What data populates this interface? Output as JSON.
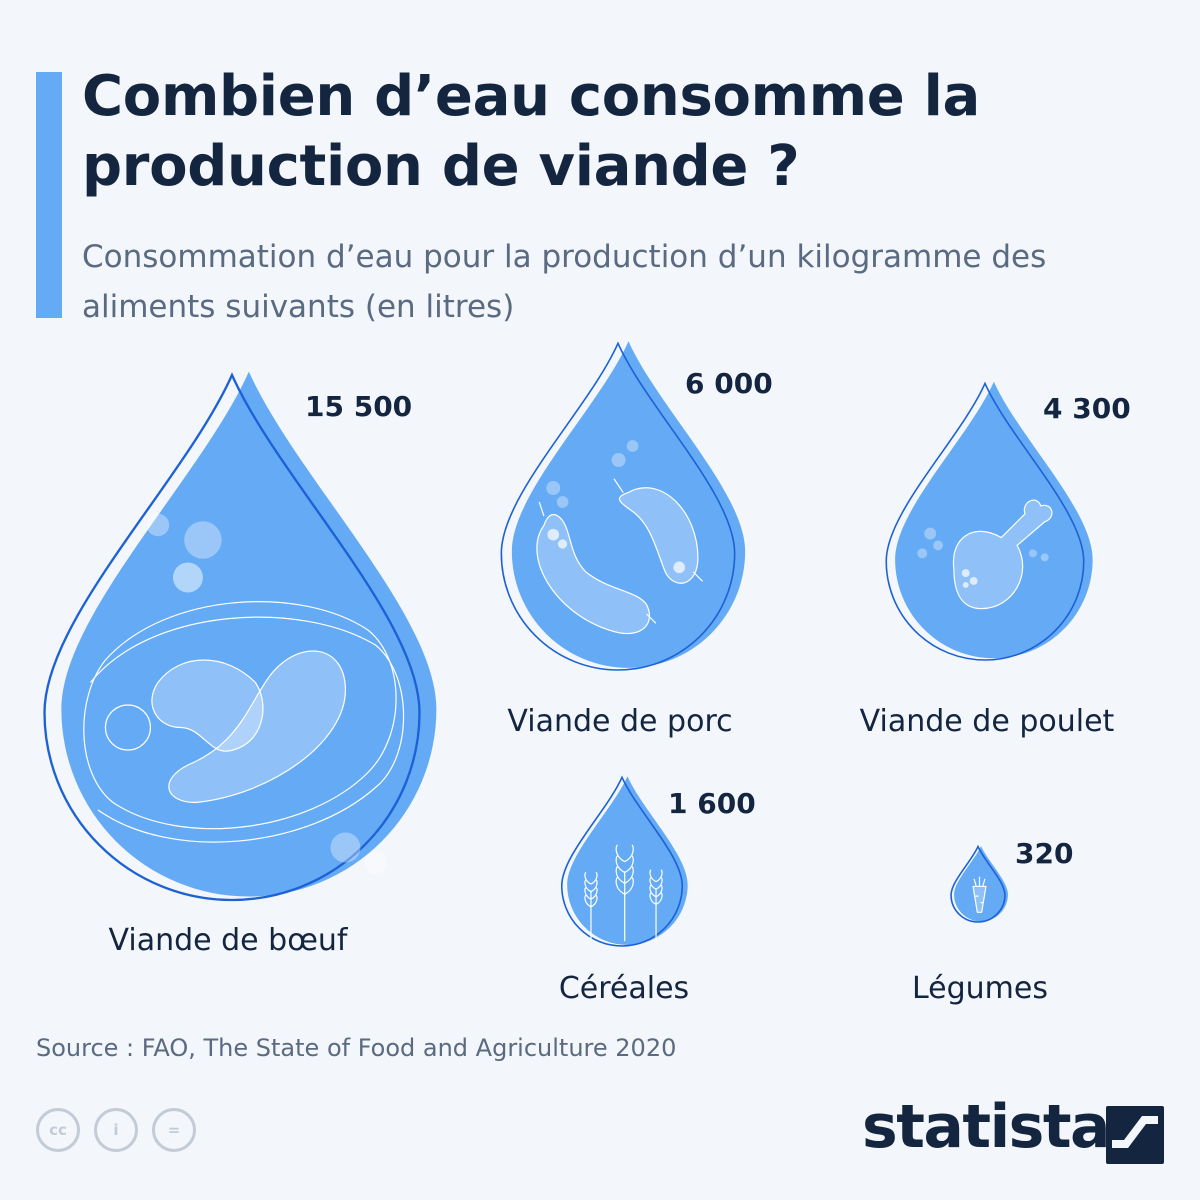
{
  "header": {
    "title": "Combien d’eau consomme la production de viande ?",
    "subtitle": "Consommation d’eau pour la production d’un kilogramme des aliments suivants (en litres)"
  },
  "colors": {
    "accent": "#64aaf5",
    "drop_fill": "#64aaf5",
    "drop_outline": "#1c62d6",
    "text_dark": "#13253f",
    "text_muted": "#5a6a80"
  },
  "chart_data": {
    "type": "bubble",
    "title": "Combien d’eau consomme la production de viande ?",
    "subtitle": "Consommation d’eau pour la production d’un kilogramme des aliments suivants (en litres)",
    "unit": "litres",
    "categories": [
      "Viande de bœuf",
      "Viande de porc",
      "Viande de poulet",
      "Céréales",
      "Légumes"
    ],
    "values": [
      15500,
      6000,
      4300,
      1600,
      320
    ],
    "value_labels": [
      "15 500",
      "6 000",
      "4 300",
      "1 600",
      "320"
    ],
    "icons": [
      "steak-icon",
      "sausage-icon",
      "chicken-leg-icon",
      "wheat-icon",
      "carrot-icon"
    ]
  },
  "footer": {
    "source": "Source : FAO, The State of Food and Agriculture 2020",
    "license_icons": [
      "cc-icon",
      "attribution-icon",
      "no-derivatives-icon"
    ],
    "license_labels": [
      "cc",
      "i",
      "="
    ],
    "brand": "statista"
  }
}
